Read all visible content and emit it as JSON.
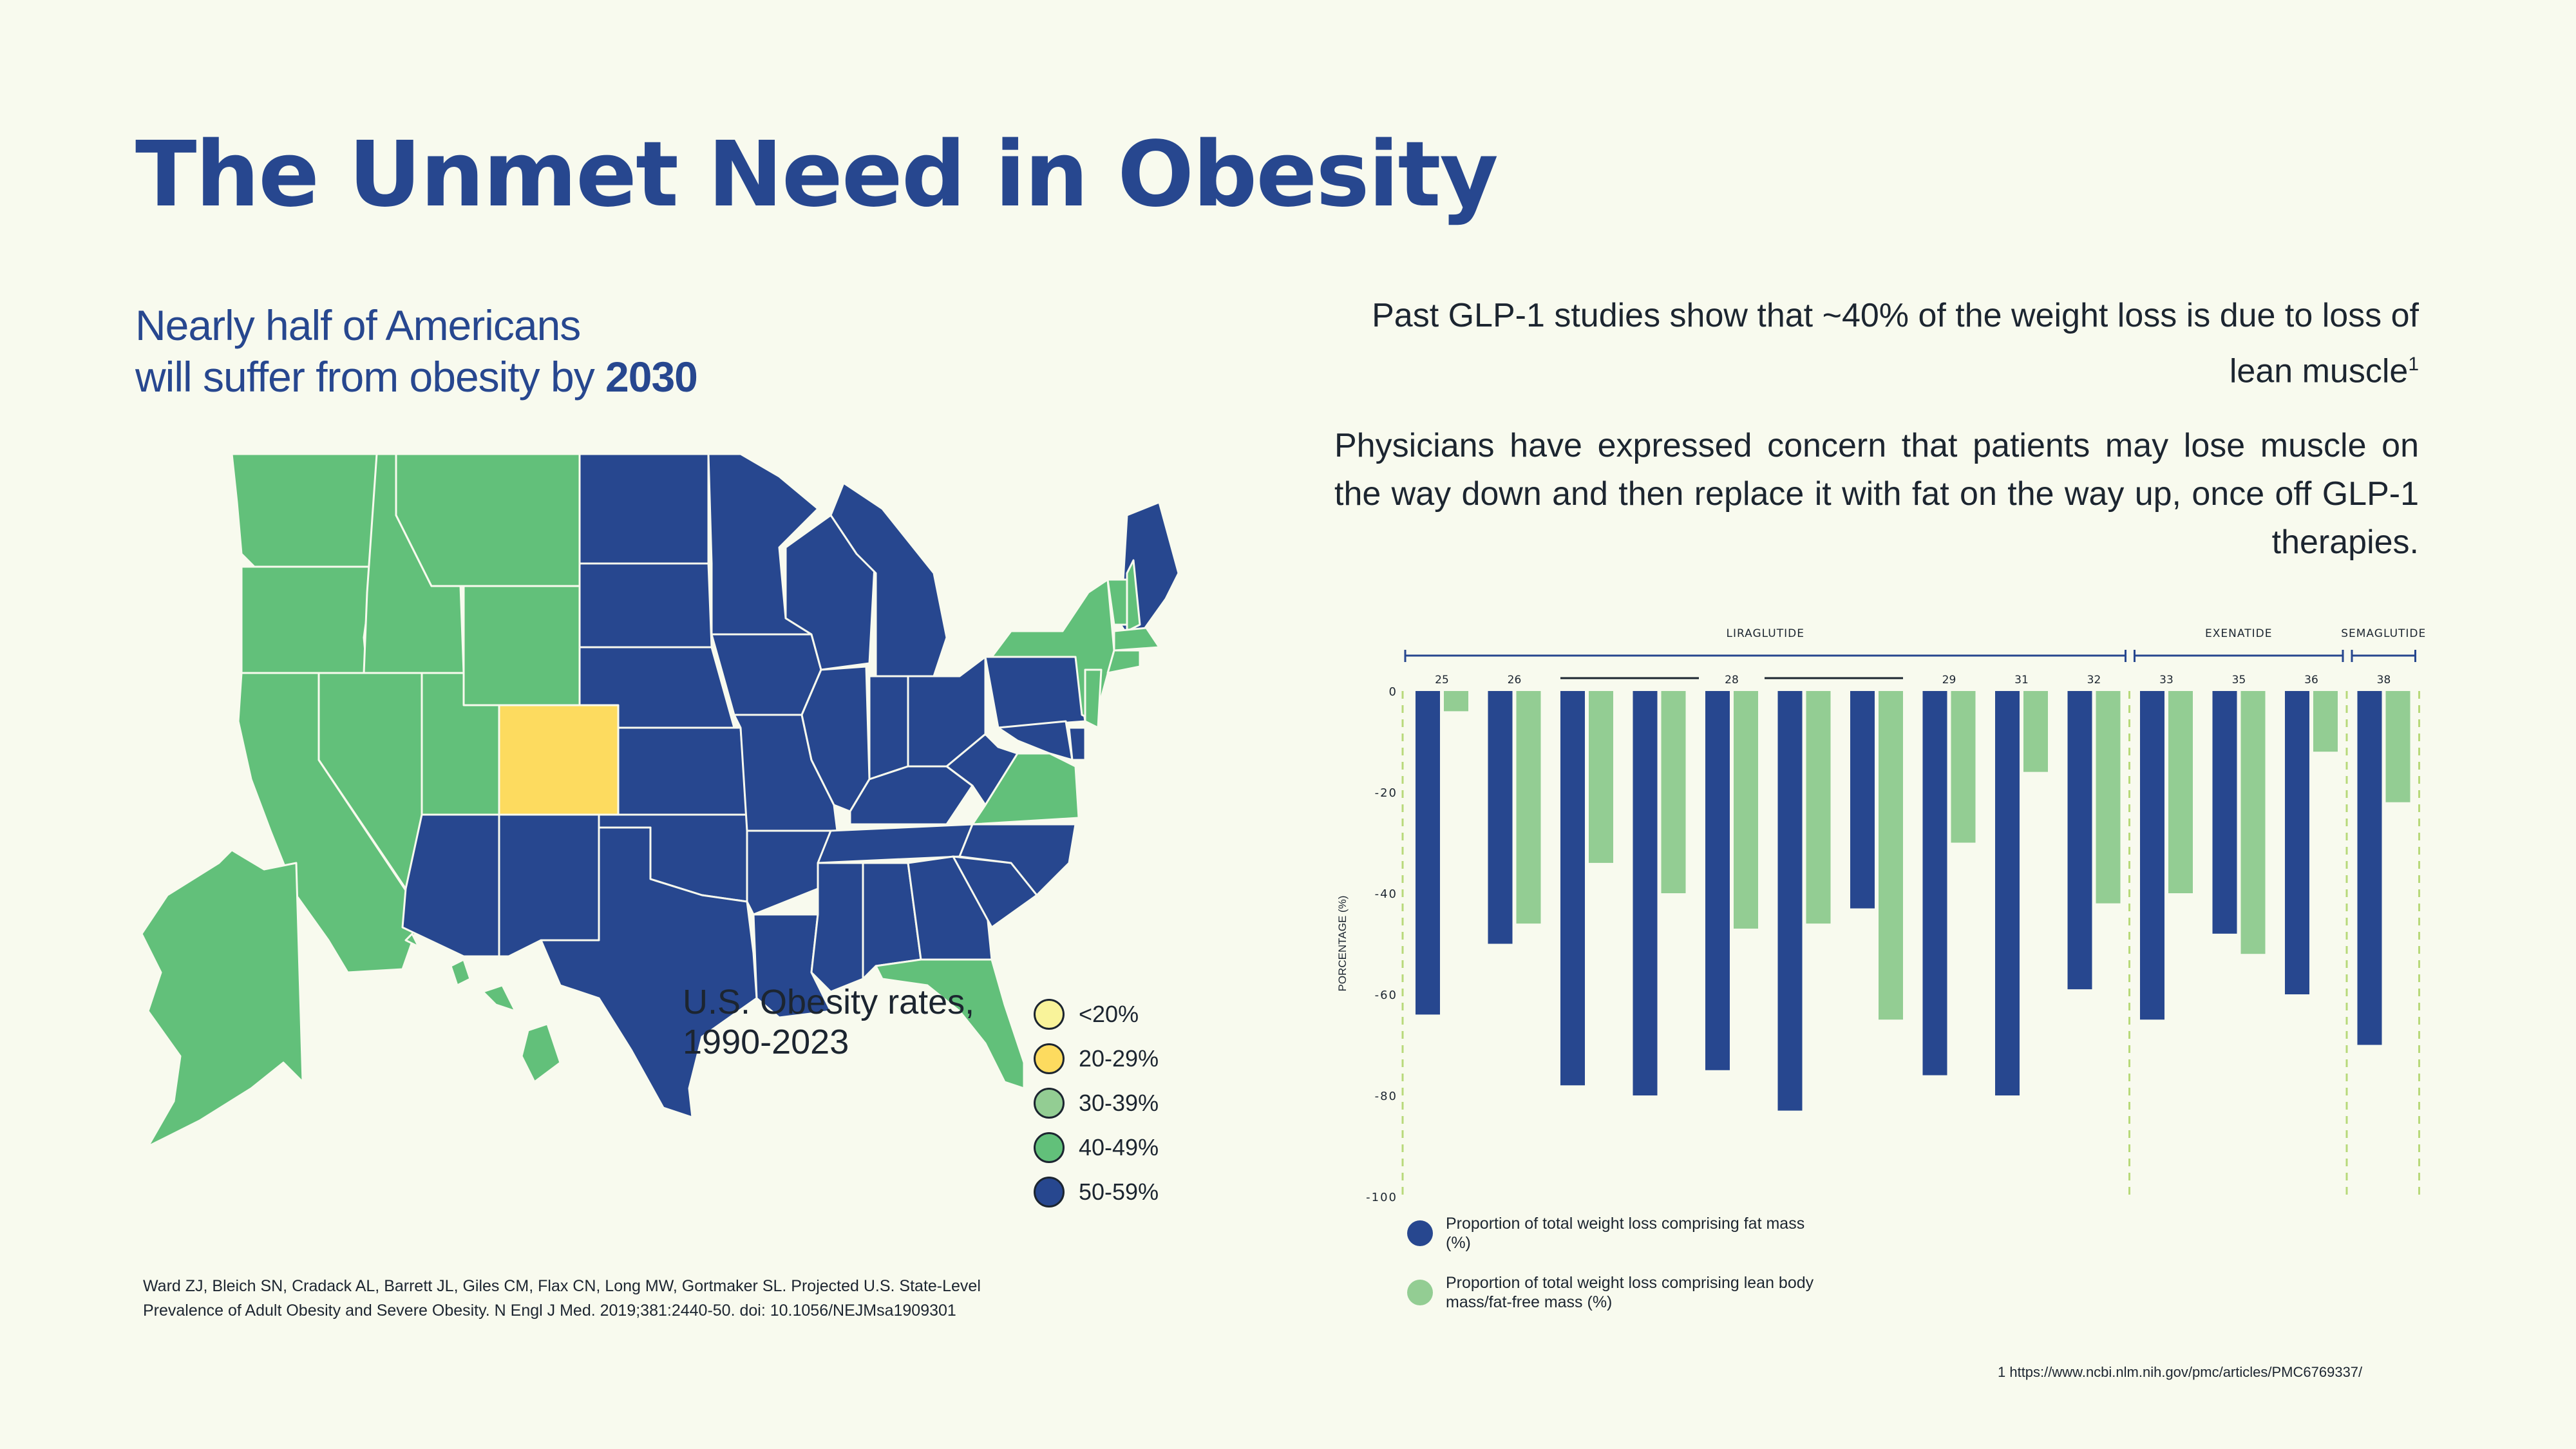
{
  "header": {
    "title": "The Unmet Need in Obesity",
    "subtitle_line1": "Nearly half of Americans",
    "subtitle_line2": "will suffer from obesity by ",
    "subtitle_bold": "2030"
  },
  "right_text": {
    "p1": "Past GLP-1 studies show that ~40% of the weight loss is due to loss of lean muscle",
    "p1_sup": "1",
    "p2": "Physicians have expressed concern that patients may lose muscle on the way down and then replace it with fat on the way up, once off GLP-1 therapies."
  },
  "map": {
    "caption_line1": "U.S. Obesity rates,",
    "caption_line2": "1990-2023",
    "legend": [
      {
        "label": "<20%",
        "color": "#f9f39a"
      },
      {
        "label": "20-29%",
        "color": "#fddb5f"
      },
      {
        "label": "30-39%",
        "color": "#93cd93"
      },
      {
        "label": "40-49%",
        "color": "#62c07a"
      },
      {
        "label": "50-59%",
        "color": "#27478f"
      }
    ],
    "state_categories": {
      "40-49%": [
        "WA",
        "OR",
        "CA",
        "NV",
        "ID",
        "MT",
        "WY",
        "UT",
        "NY",
        "VT",
        "NH",
        "MA",
        "CT",
        "RI",
        "NJ",
        "VA",
        "FL",
        "AK",
        "HI"
      ],
      "20-29%": [
        "CO"
      ],
      "50-59%": [
        "ND",
        "SD",
        "NE",
        "KS",
        "OK",
        "TX",
        "NM",
        "AZ",
        "MN",
        "IA",
        "MO",
        "AR",
        "LA",
        "WI",
        "IL",
        "MI",
        "IN",
        "OH",
        "KY",
        "TN",
        "MS",
        "AL",
        "GA",
        "SC",
        "NC",
        "WV",
        "PA",
        "MD",
        "DE",
        "ME"
      ]
    }
  },
  "citation": {
    "line1": "Ward ZJ, Bleich SN, Cradack AL, Barrett JL, Giles CM, Flax CN, Long MW, Gortmaker SL. Projected U.S. State-Level",
    "line2": "Prevalence of Adult Obesity and Severe Obesity. N Engl J Med. 2019;381:2440-50. doi: 10.1056/NEJMsa1909301"
  },
  "footnote": "1 https://www.ncbi.nlm.nih.gov/pmc/articles/PMC6769337/",
  "chart_data": {
    "type": "bar",
    "title": "",
    "ylabel": "PORCENTAGE (%)",
    "xlabel": "",
    "ylim": [
      -100,
      0
    ],
    "yticks": [
      0,
      -20,
      -40,
      -60,
      -80,
      -100
    ],
    "grid": false,
    "groups": [
      {
        "name": "LIRAGLUTIDE",
        "count": 10
      },
      {
        "name": "EXENATIDE",
        "count": 3
      },
      {
        "name": "SEMAGLUTIDE",
        "count": 1
      }
    ],
    "categories": [
      "25",
      "26",
      "28",
      "28",
      "28",
      "28",
      "28",
      "29",
      "31",
      "32",
      "33",
      "35",
      "36",
      "38"
    ],
    "category_labels_shown": [
      "25",
      "26",
      "",
      "",
      "28",
      "",
      "",
      "29",
      "31",
      "32",
      "33",
      "35",
      "36",
      "38"
    ],
    "series": [
      {
        "name": "Proportion of total weight loss comprising fat mass (%)",
        "color": "#27478f",
        "values": [
          -64,
          -50,
          -78,
          -80,
          -75,
          -83,
          -43,
          -76,
          -80,
          -59,
          -65,
          -48,
          -60,
          -70
        ]
      },
      {
        "name": "Proportion of total weight loss comprising lean body mass/fat-free mass (%)",
        "color": "#93cd93",
        "values": [
          -4,
          -46,
          -34,
          -40,
          -47,
          -46,
          -65,
          -30,
          -16,
          -42,
          -40,
          -52,
          -12,
          -22
        ]
      }
    ],
    "legend_position": "bottom-left"
  }
}
